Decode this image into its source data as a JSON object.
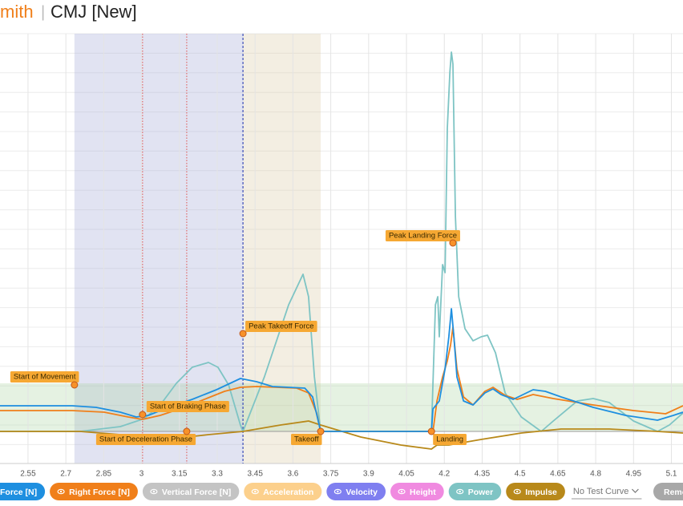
{
  "header": {
    "name": "mith",
    "separator": "|",
    "title": "CMJ [New]"
  },
  "chart_data": {
    "type": "line",
    "xlim": [
      2.439,
      5.146
    ],
    "ylim": [
      -40,
      496
    ],
    "xticks": [
      2.55,
      2.7,
      2.85,
      3,
      3.15,
      3.3,
      3.45,
      3.6,
      3.75,
      3.9,
      4.05,
      4.2,
      4.35,
      4.5,
      4.65,
      4.8,
      4.95,
      5.1
    ],
    "grid": true,
    "phases": [
      {
        "x": [
          2.734,
          3.402
        ],
        "color": "#9aa3d4"
      },
      {
        "x": [
          3.402,
          3.71
        ],
        "color": "#d8c6a0"
      }
    ],
    "band": {
      "y": [
        0,
        60
      ],
      "color": "#a9d3a0"
    },
    "markers": [
      {
        "x": 3.004,
        "color": "#e06b6b"
      },
      {
        "x": 3.179,
        "color": "#e06b6b"
      },
      {
        "x": 3.402,
        "color": "#3b4db8"
      }
    ],
    "series": [
      {
        "name": "Force [N]",
        "color": "#1e8fe0",
        "x": [
          2.439,
          2.725,
          2.82,
          2.916,
          2.979,
          3.027,
          3.106,
          3.201,
          3.297,
          3.392,
          3.456,
          3.519,
          3.647,
          3.678,
          3.71,
          4.149,
          4.155,
          4.18,
          4.203,
          4.218,
          4.228,
          4.238,
          4.25,
          4.276,
          4.314,
          4.361,
          4.393,
          4.425,
          4.473,
          4.552,
          4.6,
          4.663,
          4.79,
          4.918,
          5.045,
          5.108,
          5.146
        ],
        "values": [
          32,
          32,
          30,
          24,
          18,
          20,
          30,
          40,
          52,
          66,
          62,
          56,
          54,
          43,
          0,
          0,
          28,
          38,
          78,
          118,
          153,
          118,
          68,
          38,
          33,
          48,
          53,
          46,
          40,
          52,
          50,
          43,
          30,
          20,
          14,
          20,
          24
        ]
      },
      {
        "name": "Right Force [N]",
        "color": "#f07f1a",
        "x": [
          2.439,
          2.725,
          2.852,
          2.947,
          3.004,
          3.074,
          3.17,
          3.265,
          3.329,
          3.392,
          3.456,
          3.615,
          3.662,
          3.694,
          3.71,
          4.155,
          4.171,
          4.193,
          4.212,
          4.225,
          4.234,
          4.25,
          4.276,
          4.314,
          4.361,
          4.393,
          4.441,
          4.489,
          4.552,
          4.632,
          4.79,
          4.95,
          5.077,
          5.146
        ],
        "values": [
          26,
          26,
          24,
          18,
          15,
          20,
          30,
          42,
          50,
          55,
          56,
          54,
          48,
          23,
          0,
          0,
          38,
          68,
          88,
          108,
          130,
          78,
          43,
          33,
          50,
          55,
          45,
          40,
          46,
          41,
          33,
          26,
          22,
          32
        ]
      },
      {
        "name": "Vertical Force [N]",
        "color": "#c4c4c4",
        "hidden": true
      },
      {
        "name": "Acceleration",
        "color": "#fcd08c",
        "hidden": true
      },
      {
        "name": "Velocity",
        "color": "#7f7ff0",
        "hidden": true
      },
      {
        "name": "Height",
        "color": "#f08ae0",
        "hidden": true
      },
      {
        "name": "Power",
        "color": "#7ec4c4",
        "x": [
          2.439,
          2.757,
          2.916,
          3.011,
          3.074,
          3.138,
          3.201,
          3.265,
          3.303,
          3.345,
          3.392,
          3.402,
          3.487,
          3.583,
          3.64,
          3.662,
          3.685,
          3.71,
          4.149,
          4.165,
          4.174,
          4.18,
          4.193,
          4.203,
          4.212,
          4.222,
          4.228,
          4.234,
          4.244,
          4.257,
          4.282,
          4.314,
          4.346,
          4.371,
          4.403,
          4.441,
          4.505,
          4.584,
          4.632,
          4.727,
          4.79,
          4.854,
          4.95,
          5.045,
          5.092,
          5.146
        ],
        "values": [
          0,
          0,
          6,
          16,
          33,
          60,
          80,
          86,
          80,
          58,
          8,
          0,
          68,
          158,
          196,
          168,
          68,
          0,
          0,
          158,
          168,
          118,
          208,
          198,
          378,
          448,
          473,
          458,
          268,
          168,
          128,
          113,
          118,
          120,
          98,
          48,
          18,
          0,
          13,
          38,
          41,
          36,
          13,
          0,
          8,
          23
        ]
      },
      {
        "name": "Impulse",
        "color": "#b8891a",
        "x": [
          2.439,
          2.757,
          2.916,
          3.011,
          3.179,
          3.265,
          3.402,
          3.551,
          3.662,
          3.71,
          3.869,
          4.028,
          4.149,
          4.171,
          4.218,
          4.346,
          4.505,
          4.663,
          4.854,
          5.045,
          5.146
        ],
        "values": [
          0,
          0,
          -4,
          -7,
          -7,
          -4,
          0,
          8,
          13,
          8,
          -7,
          -17,
          -22,
          -17,
          -17,
          -10,
          -2,
          3,
          3,
          0,
          -2
        ]
      }
    ],
    "annotations": [
      {
        "text": "Start of Movement",
        "x": 2.734,
        "y": 58
      },
      {
        "text": "Start of Braking Phase",
        "x": 3.004,
        "y": 21
      },
      {
        "text": "Start of Deceleration Phase",
        "x": 3.179,
        "y": 0
      },
      {
        "text": "Peak Takeoff Force",
        "x": 3.402,
        "y": 122
      },
      {
        "text": "Takeoff",
        "x": 3.71,
        "y": 0
      },
      {
        "text": "Landing",
        "x": 4.149,
        "y": 0
      },
      {
        "text": "Peak Landing Force",
        "x": 4.234,
        "y": 235
      }
    ]
  },
  "controls": {
    "test_curve": "No Test Curve",
    "remove": "Remo"
  }
}
